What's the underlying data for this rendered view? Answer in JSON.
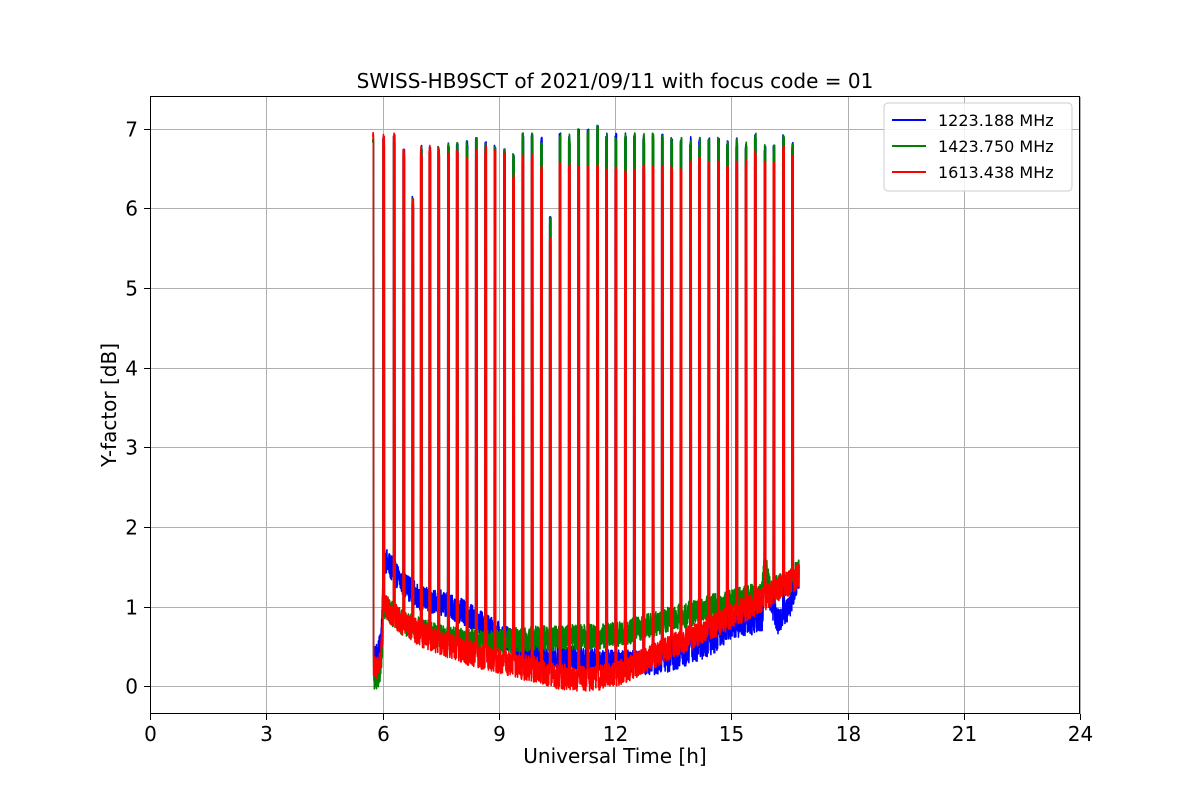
{
  "chart_data": {
    "type": "line",
    "title": "SWISS-HB9SCT of 2021/09/11 with focus code = 01",
    "xlabel": "Universal Time [h]",
    "ylabel": "Y-factor [dB]",
    "xlim": [
      0,
      24
    ],
    "ylim": [
      -0.35,
      7.4
    ],
    "xticks": [
      0,
      3,
      6,
      9,
      12,
      15,
      18,
      21,
      24
    ],
    "yticks": [
      0,
      1,
      2,
      3,
      4,
      5,
      6,
      7
    ],
    "grid": true,
    "legend_position": "top-right",
    "data_start_h": 5.75,
    "data_end_h": 16.75,
    "calibration_spike_times_h": [
      5.75,
      6.03,
      6.3,
      6.55,
      6.78,
      7.0,
      7.22,
      7.45,
      7.7,
      7.93,
      8.18,
      8.42,
      8.66,
      8.9,
      9.15,
      9.38,
      9.62,
      9.86,
      10.1,
      10.33,
      10.58,
      10.82,
      11.06,
      11.3,
      11.55,
      11.78,
      12.02,
      12.27,
      12.5,
      12.74,
      12.98,
      13.22,
      13.46,
      13.7,
      13.95,
      14.18,
      14.42,
      14.67,
      14.9,
      15.14,
      15.38,
      15.62,
      15.87,
      16.1,
      16.35,
      16.58
    ],
    "series": [
      {
        "name": "1223.188 MHz",
        "color": "#0000ff",
        "baseline": [
          [
            5.75,
            0.3
          ],
          [
            5.95,
            0.5
          ],
          [
            6.05,
            1.6
          ],
          [
            6.5,
            1.3
          ],
          [
            7.0,
            1.1
          ],
          [
            7.5,
            1.05
          ],
          [
            8.0,
            0.95
          ],
          [
            8.5,
            0.8
          ],
          [
            9.0,
            0.65
          ],
          [
            9.5,
            0.5
          ],
          [
            10.0,
            0.4
          ],
          [
            10.5,
            0.33
          ],
          [
            11.0,
            0.35
          ],
          [
            11.5,
            0.32
          ],
          [
            12.0,
            0.3
          ],
          [
            12.5,
            0.3
          ],
          [
            13.0,
            0.3
          ],
          [
            13.5,
            0.35
          ],
          [
            14.0,
            0.45
          ],
          [
            14.5,
            0.55
          ],
          [
            15.0,
            0.75
          ],
          [
            15.5,
            0.8
          ],
          [
            15.8,
            0.85
          ],
          [
            15.85,
            1.3
          ],
          [
            16.2,
            0.8
          ],
          [
            16.5,
            1.0
          ],
          [
            16.75,
            1.4
          ]
        ],
        "spike_peaks": [
          6.9,
          6.9,
          6.95,
          6.75,
          6.15,
          6.8,
          6.8,
          6.8,
          6.85,
          6.85,
          6.85,
          6.9,
          6.85,
          6.8,
          6.75,
          6.7,
          6.95,
          6.95,
          6.9,
          5.9,
          6.95,
          6.95,
          7.0,
          7.0,
          7.05,
          6.95,
          6.95,
          6.95,
          6.95,
          6.95,
          6.95,
          6.95,
          6.9,
          6.9,
          6.9,
          6.9,
          6.9,
          6.9,
          6.85,
          6.9,
          6.85,
          6.95,
          6.8,
          6.8,
          6.95,
          6.85
        ]
      },
      {
        "name": "1423.750 MHz",
        "color": "#008000",
        "baseline": [
          [
            5.75,
            0.1
          ],
          [
            5.95,
            0.15
          ],
          [
            6.05,
            1.0
          ],
          [
            6.5,
            0.8
          ],
          [
            7.0,
            0.7
          ],
          [
            7.5,
            0.62
          ],
          [
            8.0,
            0.58
          ],
          [
            8.5,
            0.55
          ],
          [
            9.0,
            0.55
          ],
          [
            9.5,
            0.58
          ],
          [
            10.0,
            0.6
          ],
          [
            10.5,
            0.6
          ],
          [
            11.0,
            0.62
          ],
          [
            11.5,
            0.62
          ],
          [
            12.0,
            0.65
          ],
          [
            12.5,
            0.7
          ],
          [
            13.0,
            0.78
          ],
          [
            13.5,
            0.85
          ],
          [
            14.0,
            0.92
          ],
          [
            14.5,
            1.0
          ],
          [
            15.0,
            1.05
          ],
          [
            15.5,
            1.12
          ],
          [
            15.8,
            1.15
          ],
          [
            15.85,
            1.6
          ],
          [
            16.0,
            1.2
          ],
          [
            16.5,
            1.3
          ],
          [
            16.75,
            1.45
          ]
        ],
        "spike_peaks": [
          6.95,
          6.9,
          6.95,
          6.75,
          6.15,
          6.8,
          6.8,
          6.8,
          6.85,
          6.85,
          6.85,
          6.9,
          6.85,
          6.8,
          6.75,
          6.7,
          6.95,
          6.95,
          6.9,
          5.9,
          6.95,
          6.95,
          7.0,
          7.0,
          7.05,
          6.95,
          6.95,
          6.95,
          6.95,
          6.95,
          6.95,
          6.95,
          6.9,
          6.9,
          6.9,
          6.9,
          6.9,
          6.9,
          6.85,
          6.9,
          6.85,
          6.95,
          6.8,
          6.8,
          6.95,
          6.85
        ]
      },
      {
        "name": "1613.438 MHz",
        "color": "#ff0000",
        "baseline": [
          [
            5.75,
            0.2
          ],
          [
            5.95,
            0.3
          ],
          [
            6.05,
            1.0
          ],
          [
            6.5,
            0.8
          ],
          [
            7.0,
            0.65
          ],
          [
            7.5,
            0.55
          ],
          [
            8.0,
            0.45
          ],
          [
            8.5,
            0.38
          ],
          [
            9.0,
            0.32
          ],
          [
            9.5,
            0.25
          ],
          [
            10.0,
            0.2
          ],
          [
            10.5,
            0.12
          ],
          [
            11.0,
            0.1
          ],
          [
            11.5,
            0.1
          ],
          [
            12.0,
            0.15
          ],
          [
            12.5,
            0.25
          ],
          [
            13.0,
            0.38
          ],
          [
            13.5,
            0.5
          ],
          [
            14.0,
            0.62
          ],
          [
            14.5,
            0.75
          ],
          [
            15.0,
            0.88
          ],
          [
            15.5,
            1.0
          ],
          [
            16.0,
            1.15
          ],
          [
            16.5,
            1.3
          ],
          [
            16.75,
            1.4
          ]
        ],
        "spike_peaks": [
          7.0,
          6.95,
          6.95,
          6.75,
          6.15,
          6.8,
          6.8,
          6.75,
          6.7,
          6.75,
          6.65,
          6.75,
          6.8,
          6.75,
          6.7,
          6.45,
          6.7,
          6.7,
          6.55,
          5.65,
          6.6,
          6.55,
          6.55,
          6.55,
          6.55,
          6.5,
          6.55,
          6.5,
          6.5,
          6.55,
          6.55,
          6.55,
          6.55,
          6.5,
          6.6,
          6.65,
          6.6,
          6.6,
          6.55,
          6.6,
          6.65,
          6.75,
          6.6,
          6.6,
          6.8,
          6.7
        ]
      }
    ]
  }
}
